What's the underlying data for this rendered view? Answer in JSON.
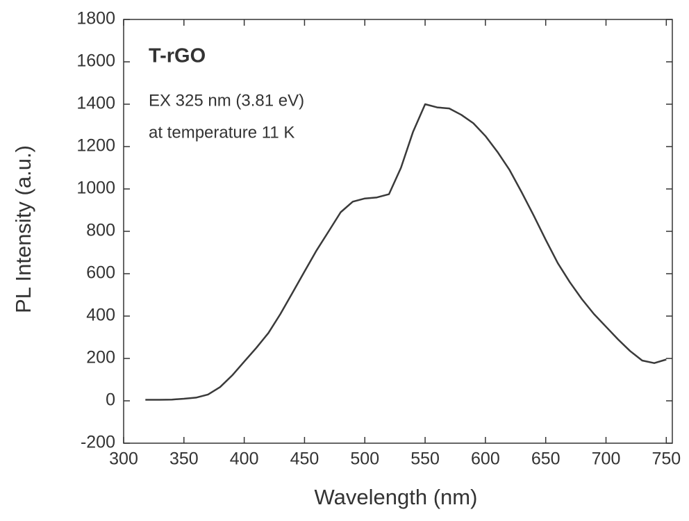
{
  "chart_data": {
    "type": "line",
    "xlabel": "Wavelength (nm)",
    "ylabel": "PL Intensity (a.u.)",
    "annotations": [
      "T-rGO",
      "EX 325 nm (3.81 eV)",
      "at temperature 11 K"
    ],
    "x": [
      318,
      330,
      340,
      350,
      360,
      370,
      380,
      390,
      400,
      410,
      420,
      430,
      440,
      450,
      460,
      470,
      480,
      490,
      500,
      510,
      520,
      530,
      540,
      550,
      560,
      570,
      580,
      590,
      600,
      610,
      620,
      630,
      640,
      650,
      660,
      670,
      680,
      690,
      700,
      710,
      720,
      730,
      740,
      750
    ],
    "values": [
      5,
      5,
      6,
      10,
      15,
      30,
      65,
      120,
      185,
      250,
      320,
      410,
      510,
      610,
      710,
      800,
      890,
      940,
      955,
      960,
      975,
      1100,
      1270,
      1400,
      1385,
      1380,
      1350,
      1310,
      1250,
      1175,
      1090,
      985,
      875,
      760,
      650,
      560,
      480,
      410,
      350,
      290,
      235,
      190,
      178,
      195
    ],
    "color": "#3a3a3a",
    "xlim": [
      300,
      755
    ],
    "xticks": [
      300,
      350,
      400,
      450,
      500,
      550,
      600,
      650,
      700,
      750
    ],
    "ylim": [
      -200,
      1800
    ],
    "yticks": [
      -200,
      0,
      200,
      400,
      600,
      800,
      1000,
      1200,
      1400,
      1600,
      1800
    ]
  }
}
